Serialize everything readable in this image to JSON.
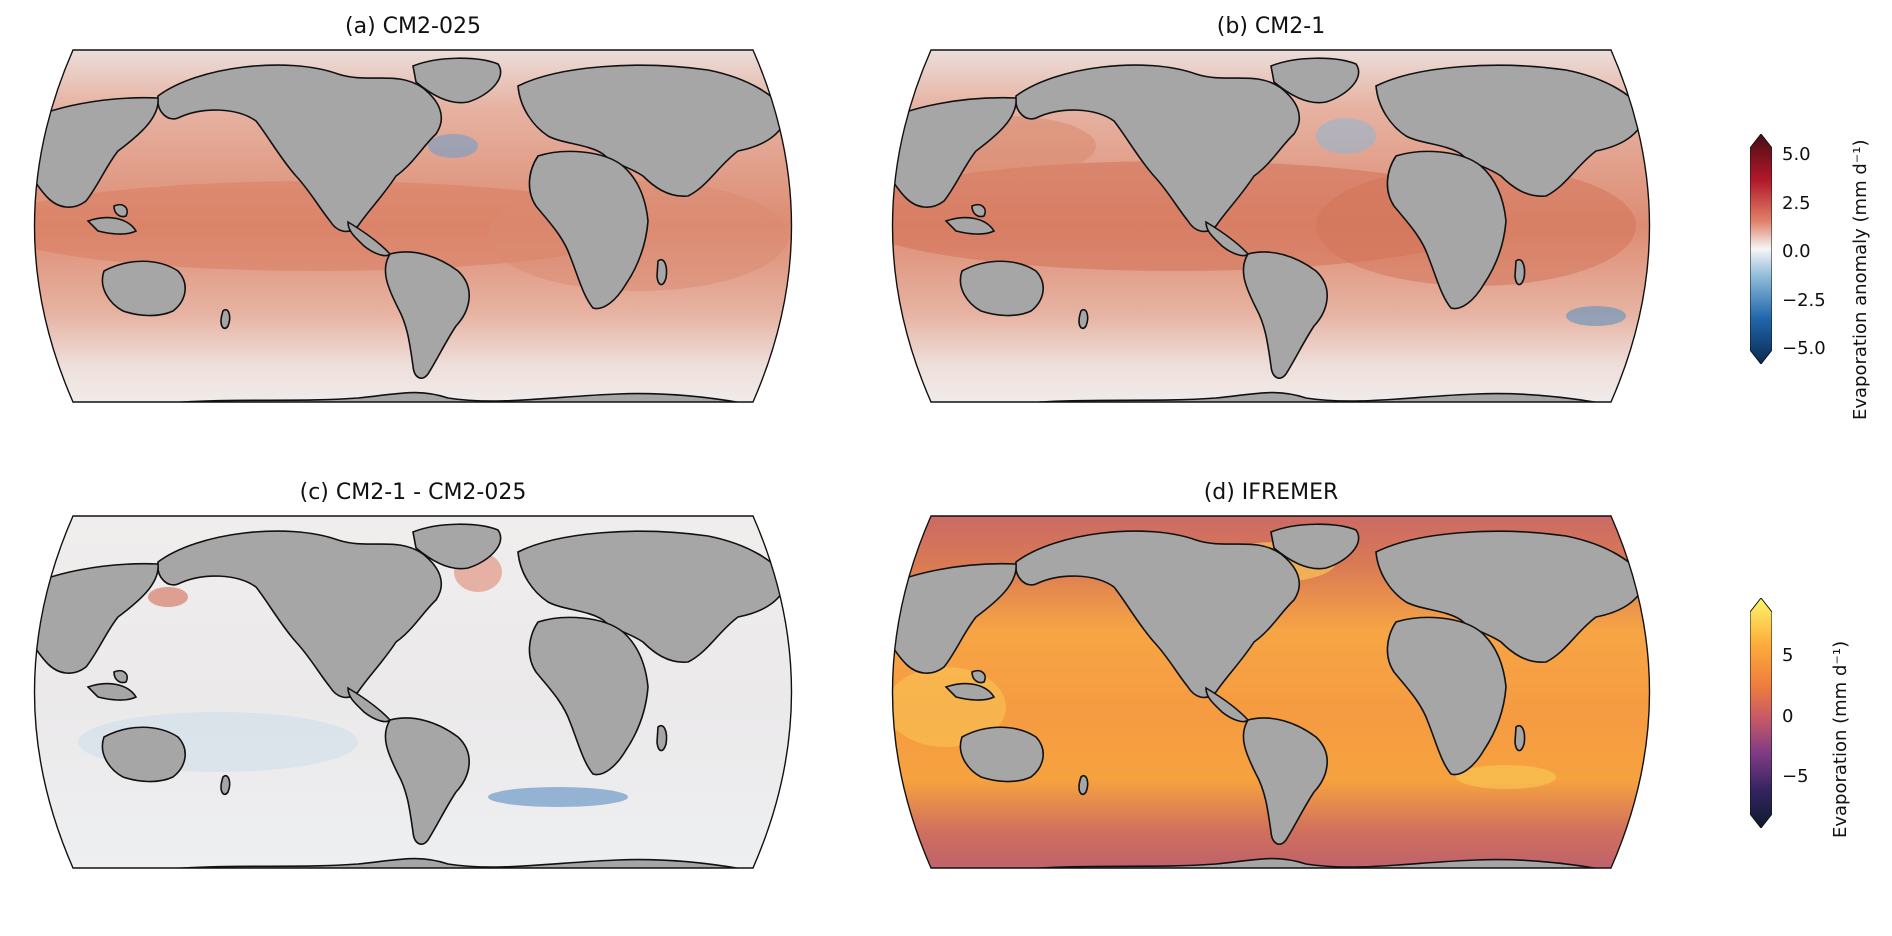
{
  "panels": [
    {
      "title": "(a) CM2-025",
      "type": "anomaly"
    },
    {
      "title": "(b) CM2-1",
      "type": "anomaly"
    },
    {
      "title": "(c) CM2-1 - CM2-025",
      "type": "difference"
    },
    {
      "title": "(d) IFREMER",
      "type": "evaporation"
    }
  ],
  "colorbars": {
    "anomaly": {
      "label": "Evaporation anomaly (mm d⁻¹)",
      "ticks": [
        "5.0",
        "2.5",
        "0.0",
        "−2.5",
        "−5.0"
      ],
      "colors": [
        "#4a0d12",
        "#b2182b",
        "#e0826a",
        "#f5f5f5",
        "#8fbbd9",
        "#2166ac",
        "#0b2a52"
      ]
    },
    "evaporation": {
      "label": "Evaporation (mm d⁻¹)",
      "ticks": [
        "5",
        "0",
        "−5"
      ],
      "colors": [
        "#fbf66a",
        "#fdad3c",
        "#ef7d3d",
        "#c85a66",
        "#7d3b84",
        "#33235f",
        "#0c1a2e"
      ]
    }
  },
  "map_colors": {
    "land": "#a6a6a6",
    "anomaly_ocean": "#ecc6b7",
    "difference_ocean": "#eeeaea",
    "evaporation_ocean": "#f2a14a",
    "evaporation_polar": "#c46470"
  }
}
